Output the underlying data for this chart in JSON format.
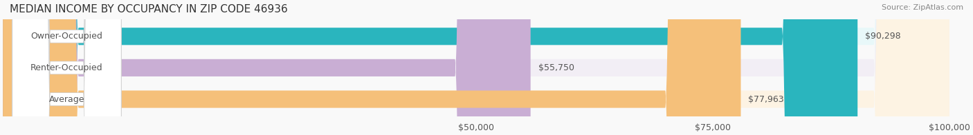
{
  "title": "MEDIAN INCOME BY OCCUPANCY IN ZIP CODE 46936",
  "source": "Source: ZipAtlas.com",
  "categories": [
    "Owner-Occupied",
    "Renter-Occupied",
    "Average"
  ],
  "values": [
    90298,
    55750,
    77963
  ],
  "labels": [
    "$90,298",
    "$55,750",
    "$77,963"
  ],
  "bar_colors": [
    "#2ab5be",
    "#c9aed4",
    "#f5c07a"
  ],
  "bar_bg_colors": [
    "#e8f8f9",
    "#f2eef5",
    "#fdf3e3"
  ],
  "xlim": [
    0,
    100000
  ],
  "xticks": [
    50000,
    75000,
    100000
  ],
  "xtick_labels": [
    "$50,000",
    "$75,000",
    "$100,000"
  ],
  "label_color": "#555555",
  "title_fontsize": 11,
  "source_fontsize": 8,
  "tick_fontsize": 9,
  "bar_label_fontsize": 9,
  "category_fontsize": 9,
  "background_color": "#f9f9f9"
}
